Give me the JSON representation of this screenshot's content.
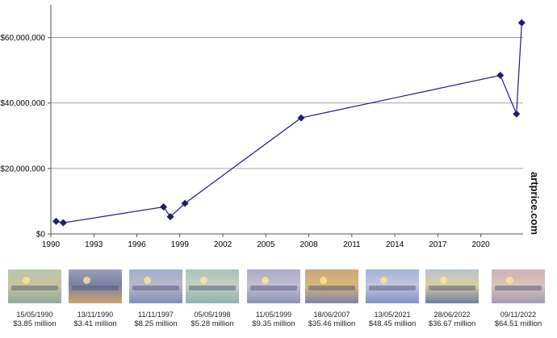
{
  "chart_data": {
    "type": "line",
    "x_scale": "date",
    "x_ticks": [
      "1990",
      "1993",
      "1996",
      "1999",
      "2002",
      "2005",
      "2008",
      "2011",
      "2014",
      "2017",
      "2020"
    ],
    "y_ticks": [
      "$0",
      "$20,000,000",
      "$40,000,000",
      "$60,000,000"
    ],
    "ylim": [
      0,
      70000000
    ],
    "grid": "horizontal",
    "series": [
      {
        "color": "#1f1f6e",
        "marker": "diamond",
        "points": [
          {
            "date": "1990-05-15",
            "value": 3850000
          },
          {
            "date": "1990-11-13",
            "value": 3410000
          },
          {
            "date": "1997-11-11",
            "value": 8250000
          },
          {
            "date": "1998-05-05",
            "value": 5280000
          },
          {
            "date": "1999-05-11",
            "value": 9350000
          },
          {
            "date": "2007-06-18",
            "value": 35460000
          },
          {
            "date": "2021-05-13",
            "value": 48450000
          },
          {
            "date": "2022-06-28",
            "value": 36670000
          },
          {
            "date": "2022-11-09",
            "value": 64510000
          }
        ]
      }
    ]
  },
  "watermark": "artprice.com",
  "thumbnails": [
    {
      "date": "15/05/1990",
      "price": "$3.85 million",
      "colors": [
        "#b6c7b2",
        "#93aa9b",
        "#c9c39a"
      ]
    },
    {
      "date": "13/11/1990",
      "price": "$3.41 million",
      "colors": [
        "#9aa0b8",
        "#c8a46a",
        "#7d7fa6"
      ]
    },
    {
      "date": "11/11/1997",
      "price": "$8.25 million",
      "colors": [
        "#9fb0c9",
        "#8090b8",
        "#b7b9c8"
      ]
    },
    {
      "date": "05/05/1998",
      "price": "$5.28 million",
      "colors": [
        "#a9c3bd",
        "#8fb2ad",
        "#c3cfc0"
      ]
    },
    {
      "date": "11/05/1999",
      "price": "$9.35 million",
      "colors": [
        "#a7acc6",
        "#8e94b5",
        "#c3bdcf"
      ]
    },
    {
      "date": "18/06/2007",
      "price": "$35.46 million",
      "colors": [
        "#c7a77a",
        "#7c86a6",
        "#d9b779"
      ]
    },
    {
      "date": "13/05/2021",
      "price": "$48.45 million",
      "colors": [
        "#a4b1d6",
        "#8192c2",
        "#c1c6de"
      ]
    },
    {
      "date": "28/06/2022",
      "price": "$36.67 million",
      "colors": [
        "#b6c2cc",
        "#6d7fa6",
        "#d8cf9f"
      ]
    },
    {
      "date": "09/11/2022",
      "price": "$64.51 million",
      "colors": [
        "#c9b4b7",
        "#a69cb3",
        "#d9c2b9"
      ]
    }
  ]
}
